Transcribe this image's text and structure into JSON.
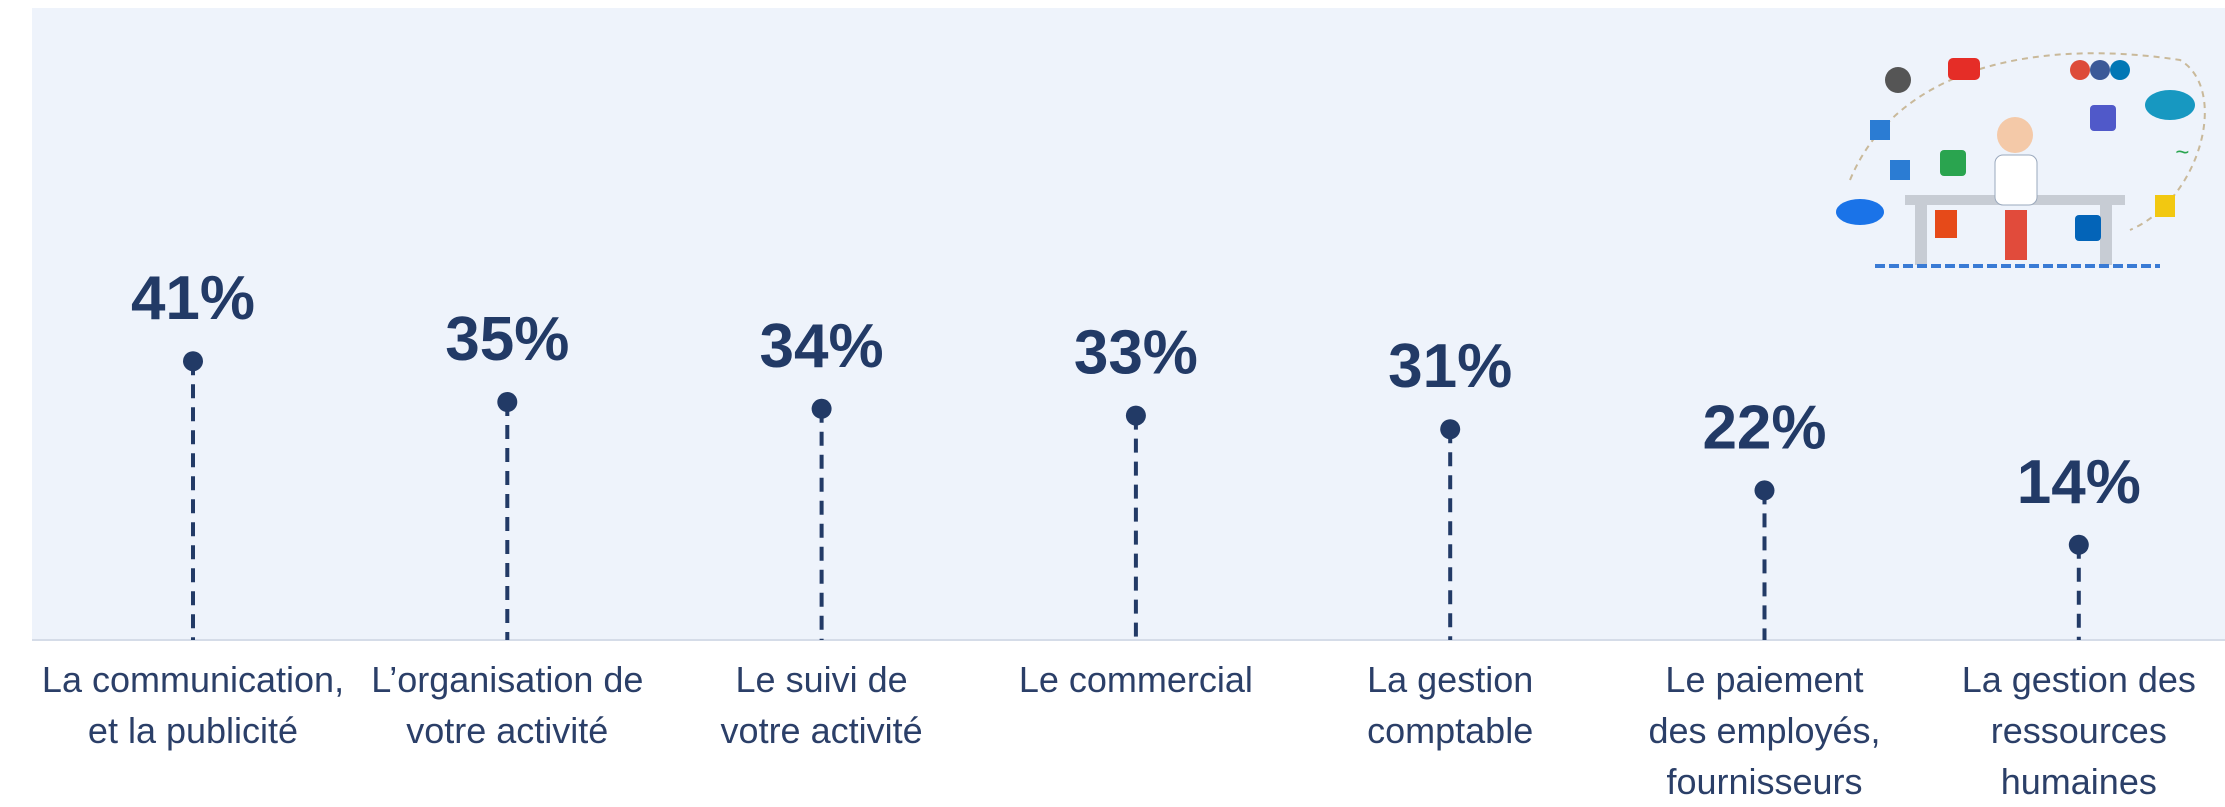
{
  "chart_data": {
    "type": "lollipop",
    "categories": [
      "La communication,\net la publicité",
      "L’organisation de\nvotre activité",
      "Le suivi de\nvotre activité",
      "Le commercial",
      "La gestion\ncomptable",
      "Le paiement\ndes employés,\nfournisseurs",
      "La gestion des\nressources\nhumaines"
    ],
    "values": [
      41,
      35,
      34,
      33,
      31,
      22,
      14
    ],
    "value_labels": [
      "41%",
      "35%",
      "34%",
      "33%",
      "31%",
      "22%",
      "14%"
    ],
    "color": "#223a66"
  }
}
